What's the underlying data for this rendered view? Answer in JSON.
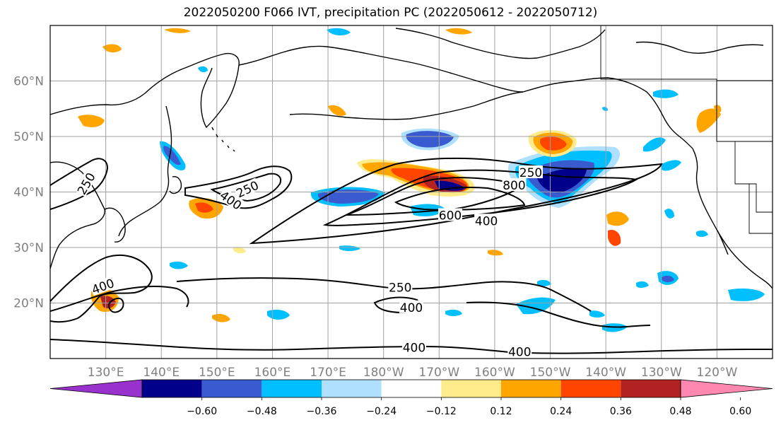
{
  "title": "2022050200 F066 IVT, precipitation PC (2022050612 - 2022050712)",
  "map": {
    "lon_range": [
      120,
      250
    ],
    "lat_range": [
      10,
      70
    ],
    "grid_color": "#a0a0a0",
    "lat_ticks": [
      {
        "lat": 60,
        "label": "60°N"
      },
      {
        "lat": 50,
        "label": "50°N"
      },
      {
        "lat": 40,
        "label": "40°N"
      },
      {
        "lat": 30,
        "label": "30°N"
      },
      {
        "lat": 20,
        "label": "20°N"
      }
    ],
    "lon_ticks": [
      {
        "lon": 130,
        "label": "130°E"
      },
      {
        "lon": 140,
        "label": "140°E"
      },
      {
        "lon": 150,
        "label": "150°E"
      },
      {
        "lon": 160,
        "label": "160°E"
      },
      {
        "lon": 170,
        "label": "170°E"
      },
      {
        "lon": 180,
        "label": "180°W"
      },
      {
        "lon": 190,
        "label": "170°W"
      },
      {
        "lon": 200,
        "label": "160°W"
      },
      {
        "lon": 210,
        "label": "150°W"
      },
      {
        "lon": 220,
        "label": "140°W"
      },
      {
        "lon": 230,
        "label": "130°W"
      },
      {
        "lon": 240,
        "label": "120°W"
      }
    ],
    "ivt_contour_labels": [
      {
        "text": "250",
        "lon": 126.5,
        "lat": 41.5,
        "rot": -60
      },
      {
        "text": "250",
        "lon": 155.5,
        "lat": 40.5,
        "rot": -25
      },
      {
        "text": "400",
        "lon": 152.5,
        "lat": 38.5,
        "rot": 35
      },
      {
        "text": "250",
        "lon": 206.5,
        "lat": 43.5,
        "rot": 0
      },
      {
        "text": "800",
        "lon": 203.5,
        "lat": 41.2,
        "rot": 0
      },
      {
        "text": "600",
        "lon": 192.0,
        "lat": 35.8,
        "rot": 0
      },
      {
        "text": "400",
        "lon": 198.5,
        "lat": 34.8,
        "rot": 0
      },
      {
        "text": "400",
        "lon": 129.5,
        "lat": 23.0,
        "rot": -20
      },
      {
        "text": "250",
        "lon": 183.0,
        "lat": 22.8,
        "rot": 0
      },
      {
        "text": "400",
        "lon": 185.0,
        "lat": 19.2,
        "rot": 0
      },
      {
        "text": "400",
        "lon": 185.5,
        "lat": 12.0,
        "rot": 0
      },
      {
        "text": "400",
        "lon": 204.5,
        "lat": 11.2,
        "rot": 0
      }
    ]
  },
  "colorbar": {
    "colors": [
      "#9932cc",
      "#00008b",
      "#3a5bd0",
      "#00bfff",
      "#b0e0ff",
      "#ffffff",
      "#ffeb8a",
      "#ffa500",
      "#ff4500",
      "#b22222",
      "#ff88b0"
    ],
    "tick_labels": [
      "−0.60",
      "−0.48",
      "−0.36",
      "−0.24",
      "−0.12",
      "0.12",
      "0.24",
      "0.36",
      "0.48",
      "0.60"
    ]
  }
}
